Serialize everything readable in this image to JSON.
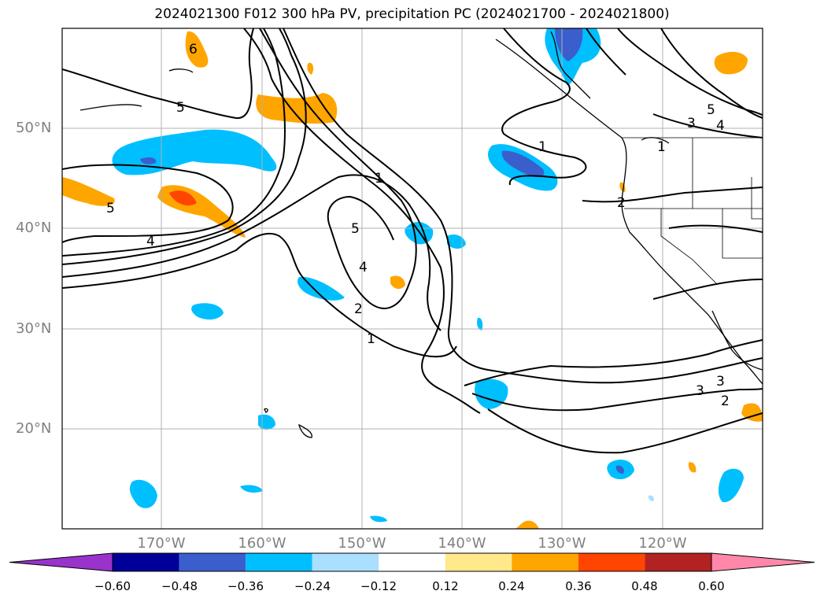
{
  "title": "2024021300 F012 300 hPa PV, precipitation PC (2024021700 - 2024021800)",
  "map": {
    "region": "North Pacific",
    "lat_range": [
      10,
      60
    ],
    "lon_range": [
      -180,
      -110
    ],
    "lat_labels": [
      "50°N",
      "40°N",
      "30°N",
      "20°N"
    ],
    "lon_labels": [
      "170°W",
      "160°W",
      "150°W",
      "140°W",
      "130°W",
      "120°W"
    ],
    "gridlines": true
  },
  "pv_contours": {
    "color": "#000000",
    "labels": [
      "6",
      "5",
      "4",
      "5",
      "1",
      "5",
      "4",
      "2",
      "1",
      "1",
      "5",
      "3",
      "4",
      "1",
      "2",
      "3",
      "3",
      "2"
    ]
  },
  "colorbar": {
    "ticks": [
      "−0.60",
      "−0.48",
      "−0.36",
      "−0.24",
      "−0.12",
      "0.12",
      "0.24",
      "0.36",
      "0.48",
      "0.60"
    ],
    "colors": [
      "#9933cc",
      "#000099",
      "#3a5fcd",
      "#00bfff",
      "#aadfff",
      "#ffffff",
      "#ffe98a",
      "#ffa500",
      "#ff4500",
      "#b22222",
      "#ff88aa"
    ],
    "extend": "both"
  }
}
